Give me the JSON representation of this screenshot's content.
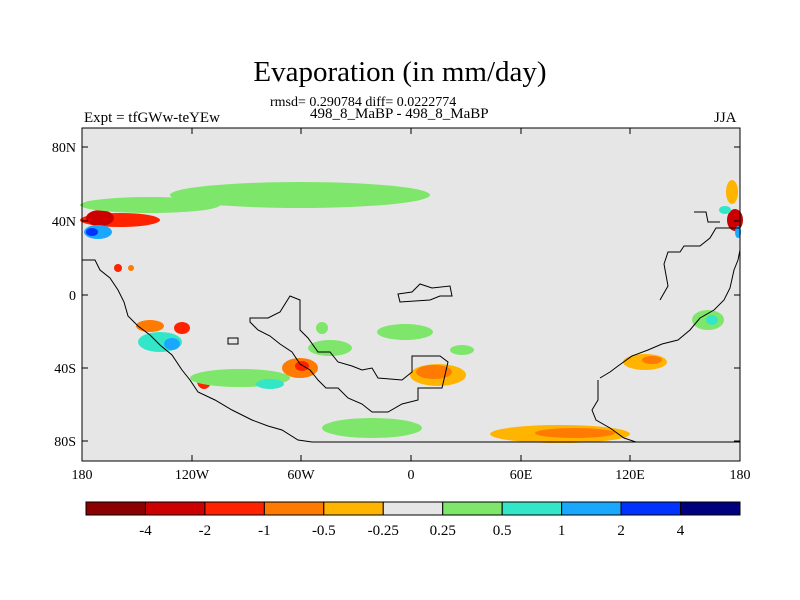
{
  "title": "Evaporation (in mm/day)",
  "subtitle": "rmsd= 0.290784 diff= 0.0222774",
  "expt_label": "Expt = tfGWw-teYEw",
  "case_label": "498_8_MaBP - 498_8_MaBP",
  "season": "JJA",
  "axes": {
    "lat_ticks": [
      "80N",
      "40N",
      "0",
      "40S",
      "80S"
    ],
    "lon_ticks": [
      "180",
      "120W",
      "60W",
      "0",
      "60E",
      "120E",
      "180"
    ]
  },
  "colorbar": {
    "labels": [
      "-4",
      "-2",
      "-1",
      "-0.5",
      "-0.25",
      "0.25",
      "0.5",
      "1",
      "2",
      "4"
    ],
    "colors": [
      "#8b0000",
      "#cc0000",
      "#ff2200",
      "#ff7a00",
      "#ffb400",
      "#e6e6e6",
      "#7ee66a",
      "#33e6c8",
      "#1aa8ff",
      "#0033ff",
      "#00007f"
    ]
  },
  "map_colors": {
    "background": "#e6e6e6",
    "coast": "#000000"
  }
}
